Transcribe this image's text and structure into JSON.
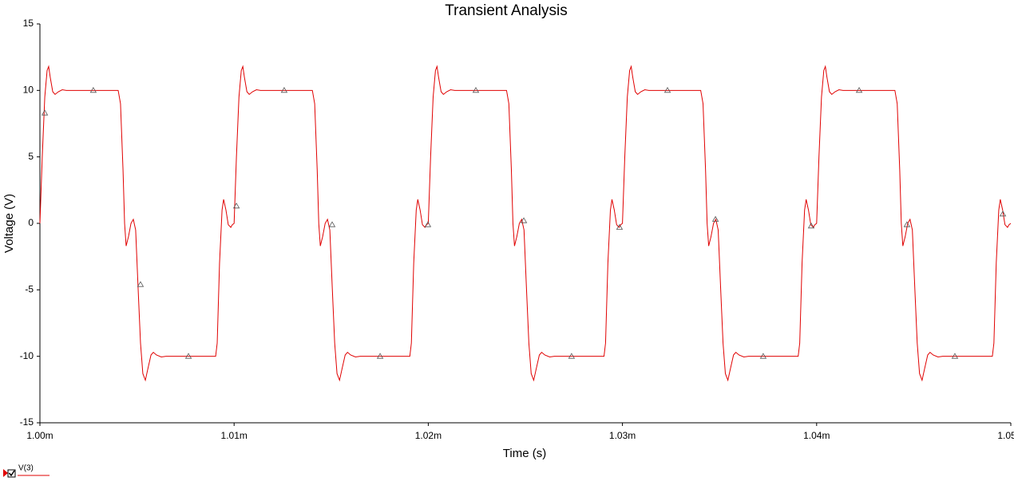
{
  "chart_data": {
    "type": "line",
    "title": "Transient Analysis",
    "x_label": "Time (s)",
    "y_label": "Voltage (V)",
    "xlim": [
      0.001,
      0.00105
    ],
    "ylim": [
      -15,
      15
    ],
    "xticks": [
      {
        "value": 0.001,
        "label": "1.00m"
      },
      {
        "value": 0.00101,
        "label": "1.01m"
      },
      {
        "value": 0.00102,
        "label": "1.02m"
      },
      {
        "value": 0.00103,
        "label": "1.03m"
      },
      {
        "value": 0.00104,
        "label": "1.04m"
      },
      {
        "value": 0.00105,
        "label": "1.05m"
      }
    ],
    "yticks": [
      -15,
      -10,
      -5,
      0,
      5,
      10,
      15
    ],
    "grid": false,
    "series": [
      {
        "name": "V(3)",
        "color": "#e00000",
        "x": [
          0.001,
          0.00100012,
          0.00100025,
          0.00100037,
          0.00100045,
          0.00100053,
          0.00100066,
          0.00100078,
          0.00100095,
          0.00100115,
          0.00100136,
          0.00100403,
          0.00100415,
          0.00100428,
          0.00100436,
          0.00100444,
          0.00100456,
          0.00100469,
          0.00100481,
          0.00100493,
          0.00100506,
          0.00100518,
          0.0010053,
          0.00100543,
          0.00100555,
          0.00100572,
          0.00100584,
          0.001006,
          0.00100625,
          0.0010065,
          0.00100905,
          0.00100913,
          0.00100925,
          0.00100938,
          0.00100946,
          0.00100958,
          0.0010097,
          0.00100983,
          0.00100991,
          0.00101,
          0.00101012,
          0.00101025,
          0.00101037,
          0.00101045,
          0.00101053,
          0.00101066,
          0.00101078,
          0.00101095,
          0.00101115,
          0.00101136,
          0.00101403,
          0.00101415,
          0.00101428,
          0.00101436,
          0.00101444,
          0.00101456,
          0.00101469,
          0.00101481,
          0.00101493,
          0.00101506,
          0.00101518,
          0.0010153,
          0.00101543,
          0.00101555,
          0.00101572,
          0.00101584,
          0.001016,
          0.00101625,
          0.0010165,
          0.00101905,
          0.00101913,
          0.00101925,
          0.00101938,
          0.00101946,
          0.00101958,
          0.0010197,
          0.00101983,
          0.00101991,
          0.00102,
          0.00102012,
          0.00102025,
          0.00102037,
          0.00102045,
          0.00102053,
          0.00102066,
          0.00102078,
          0.00102095,
          0.00102115,
          0.00102136,
          0.00102403,
          0.00102415,
          0.00102428,
          0.00102436,
          0.00102444,
          0.00102456,
          0.00102469,
          0.00102481,
          0.00102493,
          0.00102506,
          0.00102518,
          0.0010253,
          0.00102543,
          0.00102555,
          0.00102572,
          0.00102584,
          0.001026,
          0.00102625,
          0.0010265,
          0.00102905,
          0.00102913,
          0.00102925,
          0.00102938,
          0.00102946,
          0.00102958,
          0.0010297,
          0.00102983,
          0.00102991,
          0.00103,
          0.00103012,
          0.00103025,
          0.00103037,
          0.00103045,
          0.00103053,
          0.00103066,
          0.00103078,
          0.00103095,
          0.00103115,
          0.00103136,
          0.00103403,
          0.00103415,
          0.00103428,
          0.00103436,
          0.00103444,
          0.00103456,
          0.00103469,
          0.00103481,
          0.00103493,
          0.00103506,
          0.00103518,
          0.0010353,
          0.00103543,
          0.00103555,
          0.00103572,
          0.00103584,
          0.001036,
          0.00103625,
          0.0010365,
          0.00103905,
          0.00103913,
          0.00103925,
          0.00103938,
          0.00103946,
          0.00103958,
          0.0010397,
          0.00103983,
          0.00103991,
          0.00104,
          0.00104012,
          0.00104025,
          0.00104037,
          0.00104045,
          0.00104053,
          0.00104066,
          0.00104078,
          0.00104095,
          0.00104115,
          0.00104136,
          0.00104403,
          0.00104415,
          0.00104428,
          0.00104436,
          0.00104444,
          0.00104456,
          0.00104469,
          0.00104481,
          0.00104493,
          0.00104506,
          0.00104518,
          0.0010453,
          0.00104543,
          0.00104555,
          0.00104572,
          0.00104584,
          0.001046,
          0.00104625,
          0.0010465,
          0.00104905,
          0.00104913,
          0.00104925,
          0.00104938,
          0.00104946,
          0.00104958,
          0.0010497,
          0.00104983,
          0.00104991,
          0.00105
        ],
        "values": [
          0,
          5,
          9.5,
          11.5,
          11.8,
          11,
          9.9,
          9.7,
          9.9,
          10.05,
          10,
          10,
          9,
          4,
          0,
          -1.7,
          -1,
          0,
          0.3,
          -0.5,
          -5,
          -9,
          -11.3,
          -11.8,
          -11,
          -9.9,
          -9.7,
          -9.9,
          -10.05,
          -10,
          -10,
          -9,
          -3,
          1,
          1.8,
          1,
          -0.1,
          -0.3,
          -0.1,
          0,
          5,
          9.5,
          11.5,
          11.8,
          11,
          9.9,
          9.7,
          9.9,
          10.05,
          10,
          10,
          9,
          4,
          0,
          -1.7,
          -1,
          0,
          0.3,
          -0.5,
          -5,
          -9,
          -11.3,
          -11.8,
          -11,
          -9.9,
          -9.7,
          -9.9,
          -10.05,
          -10,
          -10,
          -9,
          -3,
          1,
          1.8,
          1,
          -0.1,
          -0.3,
          -0.1,
          0,
          5,
          9.5,
          11.5,
          11.8,
          11,
          9.9,
          9.7,
          9.9,
          10.05,
          10,
          10,
          9,
          4,
          0,
          -1.7,
          -1,
          0,
          0.3,
          -0.5,
          -5,
          -9,
          -11.3,
          -11.8,
          -11,
          -9.9,
          -9.7,
          -9.9,
          -10.05,
          -10,
          -10,
          -9,
          -3,
          1,
          1.8,
          1,
          -0.1,
          -0.3,
          -0.1,
          0,
          5,
          9.5,
          11.5,
          11.8,
          11,
          9.9,
          9.7,
          9.9,
          10.05,
          10,
          10,
          9,
          4,
          0,
          -1.7,
          -1,
          0,
          0.3,
          -0.5,
          -5,
          -9,
          -11.3,
          -11.8,
          -11,
          -9.9,
          -9.7,
          -9.9,
          -10.05,
          -10,
          -10,
          -9,
          -3,
          1,
          1.8,
          1,
          -0.1,
          -0.3,
          -0.1,
          0,
          5,
          9.5,
          11.5,
          11.8,
          11,
          9.9,
          9.7,
          9.9,
          10.05,
          10,
          10,
          9,
          4,
          0,
          -1.7,
          -1,
          0,
          0.3,
          -0.5,
          -5,
          -9,
          -11.3,
          -11.8,
          -11,
          -9.9,
          -9.7,
          -9.9,
          -10.05,
          -10,
          -10,
          -9,
          -3,
          1,
          1.8,
          1,
          -0.1,
          -0.3,
          -0.1,
          0
        ],
        "markers_x": [
          0.00100025,
          0.00100275,
          0.00100518,
          0.00100765,
          0.00101012,
          0.00101258,
          0.00101505,
          0.00101752,
          0.00101998,
          0.00102245,
          0.00102492,
          0.00102738,
          0.00102985,
          0.00103232,
          0.00103479,
          0.00103725,
          0.00103972,
          0.00104219,
          0.00104465,
          0.00104712,
          0.00104959
        ],
        "markers_y": [
          8.3,
          10,
          -4.6,
          -10,
          1.3,
          10,
          -0.1,
          -10,
          -0.1,
          10,
          0.2,
          -10,
          -0.3,
          10,
          0.3,
          -10,
          -0.2,
          10,
          -0.1,
          -10,
          0.7
        ]
      }
    ]
  }
}
